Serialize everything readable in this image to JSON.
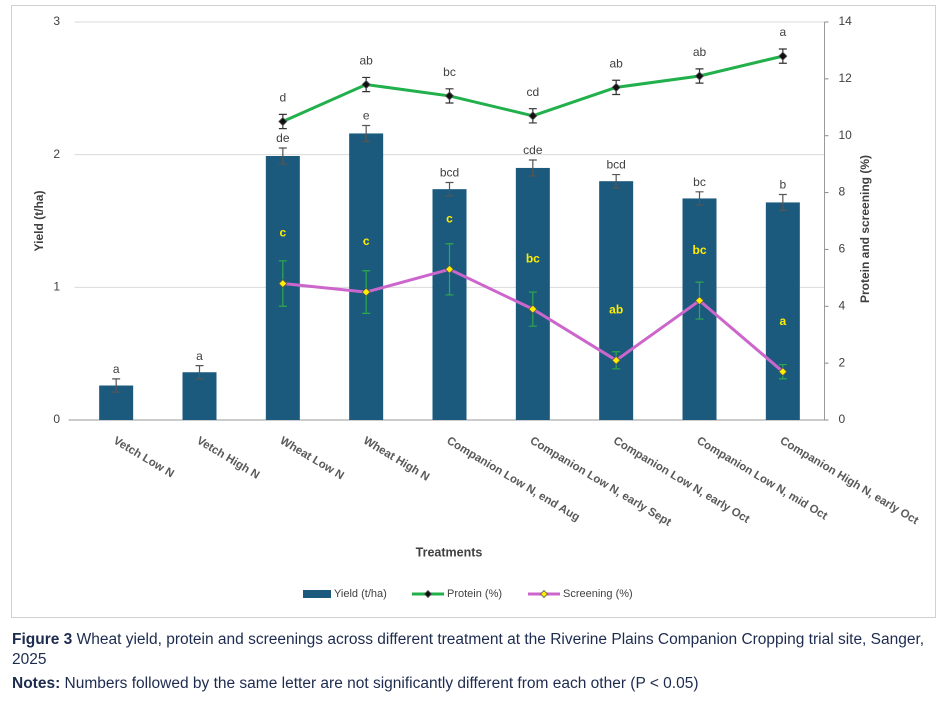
{
  "chart_data": {
    "type": "bar",
    "x_label": "Treatments",
    "y_label": "Yield (t/ha)",
    "y2_label": "Protein and screening (%)",
    "categories": [
      "Vetch Low N",
      "Vetch High N",
      "Wheat Low N",
      "Wheat High N",
      "Companion Low N, end Aug",
      "Companion Low N, early Sept",
      "Companion Low N, early Oct",
      "Companion Low N, mid Oct",
      "Companion High N, early Oct"
    ],
    "ylim": [
      0,
      3
    ],
    "yticks": [
      0,
      1,
      2,
      3
    ],
    "y2lim": [
      0,
      14
    ],
    "y2ticks": [
      0,
      2,
      4,
      6,
      8,
      10,
      12,
      14
    ],
    "grid": true,
    "legend": "bottom",
    "series": [
      {
        "name": "Yield (t/ha)",
        "type": "bar",
        "color": "#1b5a7d",
        "error_color": "#555555",
        "letter_color": "#404040",
        "values": [
          0.26,
          0.36,
          1.99,
          2.16,
          1.74,
          1.9,
          1.8,
          1.67,
          1.64
        ],
        "errors": [
          0.05,
          0.05,
          0.06,
          0.06,
          0.05,
          0.06,
          0.05,
          0.05,
          0.06
        ],
        "letters": [
          "a",
          "a",
          "de",
          "e",
          "bcd",
          "cde",
          "bcd",
          "bc",
          "b"
        ]
      },
      {
        "name": "Protein (%)",
        "type": "line",
        "axis": "y2",
        "color": "#21b04b",
        "marker_color": "#111111",
        "error_color": "#333333",
        "letter_color": "#404040",
        "values": [
          null,
          null,
          10.5,
          11.8,
          11.4,
          10.7,
          11.7,
          12.1,
          12.8
        ],
        "errors": [
          null,
          null,
          0.25,
          0.25,
          0.25,
          0.25,
          0.25,
          0.25,
          0.25
        ],
        "letters": [
          null,
          null,
          "d",
          "ab",
          "bc",
          "cd",
          "ab",
          "ab",
          "a"
        ]
      },
      {
        "name": "Screening (%)",
        "type": "line",
        "axis": "y2",
        "color": "#cc66cc",
        "marker_color": "#ffee00",
        "error_color": "#2ea84a",
        "letter_color": "#ffee00",
        "values": [
          null,
          null,
          4.8,
          4.5,
          5.3,
          3.9,
          2.1,
          4.2,
          1.7
        ],
        "errors": [
          null,
          null,
          0.8,
          0.75,
          0.9,
          0.6,
          0.3,
          0.65,
          0.25
        ],
        "letters": [
          null,
          null,
          "c",
          "c",
          "c",
          "bc",
          "ab",
          "bc",
          "a"
        ]
      }
    ]
  },
  "figure_label": "Figure 3",
  "caption": "Wheat yield, protein and screenings across different treatment at the Riverine Plains Companion Cropping trial site, Sanger, 2025",
  "notes_label": "Notes:",
  "notes": "Numbers followed by the same letter are not significantly different from each other (P < 0.05)"
}
